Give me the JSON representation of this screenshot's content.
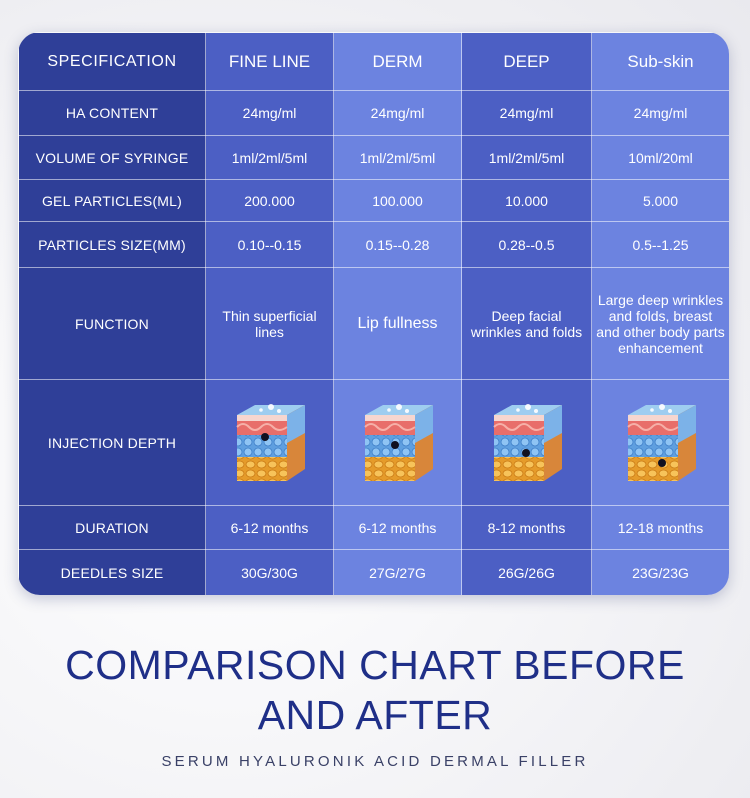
{
  "table": {
    "header": [
      "SPECIFICATION",
      "FINE LINE",
      "DERM",
      "DEEP",
      "Sub-skin"
    ],
    "rows": [
      {
        "label": "HA CONTENT",
        "values": [
          "24mg/ml",
          "24mg/ml",
          "24mg/ml",
          "24mg/ml"
        ]
      },
      {
        "label": "VOLUME OF SYRINGE",
        "values": [
          "1ml/2ml/5ml",
          "1ml/2ml/5ml",
          "1ml/2ml/5ml",
          "10ml/20ml"
        ]
      },
      {
        "label": "GEL PARTICLES(ML)",
        "values": [
          "200.000",
          "100.000",
          "10.000",
          "5.000"
        ]
      },
      {
        "label": "PARTICLES SIZE(MM)",
        "values": [
          "0.10--0.15",
          "0.15--0.28",
          "0.28--0.5",
          "0.5--1.25"
        ]
      },
      {
        "label": "FUNCTION",
        "values": [
          "Thin superficial lines",
          "Lip fullness",
          "Deep facial wrinkles and folds",
          "Large deep wrinkles and folds, breast and other body parts enhancement"
        ]
      },
      {
        "label": "INJECTION DEPTH",
        "values": [
          "",
          "",
          "",
          ""
        ]
      },
      {
        "label": "DURATION",
        "values": [
          "6-12 months",
          "6-12 months",
          "8-12 months",
          "12-18 months"
        ]
      },
      {
        "label": "DEEDLES SIZE",
        "values": [
          "30G/30G",
          "27G/27G",
          "26G/26G",
          "23G/23G"
        ]
      }
    ]
  },
  "injection_depth_icons": [
    "skin-layers-icon",
    "skin-layers-icon",
    "skin-layers-icon",
    "skin-layers-icon"
  ],
  "heading": {
    "line1": "COMPARISON CHART BEFORE",
    "line2": "AND AFTER",
    "subtitle": "SERUM HYALURONIK ACID DERMAL FILLER"
  },
  "colors": {
    "dark_blue": "#2f3f98",
    "mid_blue": "#4c5fc4",
    "light_blue": "#6c83e0",
    "title_blue": "#1f2f88"
  }
}
